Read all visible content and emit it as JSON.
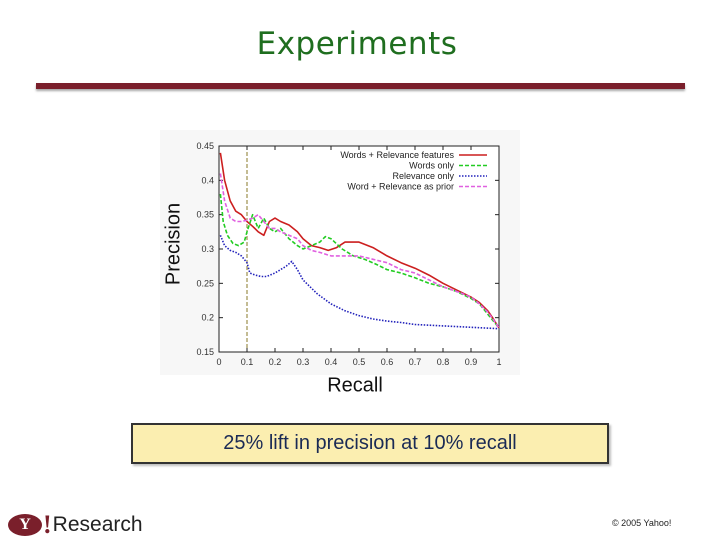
{
  "slide": {
    "title": "Experiments",
    "caption": "25% lift in precision at 10% recall",
    "logo": {
      "mark": "Y",
      "bang": "!",
      "word": "Research"
    },
    "copyright": "© 2005 Yahoo!",
    "colors": {
      "title": "#1f6e1f",
      "rule": "#7a1f2b",
      "callout_bg": "#fbeeb0"
    }
  },
  "chart_data": {
    "type": "line",
    "xlabel": "Recall",
    "ylabel": "Precision",
    "xlim": [
      0,
      1
    ],
    "ylim": [
      0.15,
      0.45
    ],
    "xticks": [
      0,
      0.1,
      0.2,
      0.3,
      0.4,
      0.5,
      0.6,
      0.7,
      0.8,
      0.9,
      1
    ],
    "xtick_labels": [
      "0",
      "0.1",
      "0.2",
      "0.3",
      "0.4",
      "0.5",
      "0.6",
      "0.7",
      "0.8",
      "0.9",
      "1"
    ],
    "yticks": [
      0.15,
      0.2,
      0.25,
      0.3,
      0.35,
      0.4,
      0.45
    ],
    "ytick_labels": [
      "0.15",
      "0.2",
      "0.25",
      "0.3",
      "0.35",
      "0.4",
      "0.45"
    ],
    "grid": false,
    "legend_position": "top-right",
    "vline_x": 0.1,
    "series": [
      {
        "name": "Words + Relevance features",
        "color": "#cc1f1f",
        "style": "solid",
        "x": [
          0.005,
          0.02,
          0.04,
          0.06,
          0.08,
          0.1,
          0.12,
          0.14,
          0.16,
          0.18,
          0.2,
          0.22,
          0.25,
          0.28,
          0.3,
          0.33,
          0.36,
          0.39,
          0.42,
          0.45,
          0.5,
          0.55,
          0.6,
          0.65,
          0.7,
          0.75,
          0.8,
          0.85,
          0.9,
          0.93,
          0.96,
          0.98,
          1.0
        ],
        "y": [
          0.44,
          0.4,
          0.37,
          0.355,
          0.35,
          0.34,
          0.333,
          0.325,
          0.32,
          0.34,
          0.345,
          0.34,
          0.335,
          0.325,
          0.315,
          0.305,
          0.302,
          0.298,
          0.302,
          0.31,
          0.31,
          0.302,
          0.29,
          0.28,
          0.272,
          0.262,
          0.25,
          0.24,
          0.23,
          0.222,
          0.21,
          0.198,
          0.185
        ]
      },
      {
        "name": "Words only",
        "color": "#22cc22",
        "style": "dashed",
        "x": [
          0.005,
          0.015,
          0.03,
          0.05,
          0.07,
          0.09,
          0.1,
          0.12,
          0.14,
          0.16,
          0.18,
          0.2,
          0.22,
          0.25,
          0.28,
          0.3,
          0.33,
          0.36,
          0.38,
          0.4,
          0.44,
          0.48,
          0.52,
          0.56,
          0.6,
          0.65,
          0.7,
          0.75,
          0.8,
          0.85,
          0.9,
          0.93,
          0.96,
          0.98,
          1.0
        ],
        "y": [
          0.38,
          0.34,
          0.32,
          0.308,
          0.305,
          0.31,
          0.325,
          0.35,
          0.33,
          0.345,
          0.33,
          0.325,
          0.33,
          0.315,
          0.305,
          0.3,
          0.305,
          0.31,
          0.318,
          0.315,
          0.3,
          0.29,
          0.285,
          0.278,
          0.27,
          0.265,
          0.258,
          0.25,
          0.245,
          0.238,
          0.228,
          0.22,
          0.205,
          0.195,
          0.185
        ]
      },
      {
        "name": "Relevance only",
        "color": "#2222bb",
        "style": "dotted",
        "x": [
          0.005,
          0.02,
          0.04,
          0.06,
          0.08,
          0.1,
          0.11,
          0.13,
          0.15,
          0.17,
          0.2,
          0.22,
          0.24,
          0.26,
          0.28,
          0.3,
          0.35,
          0.4,
          0.45,
          0.5,
          0.55,
          0.6,
          0.65,
          0.7,
          0.75,
          0.8,
          0.85,
          0.9,
          0.95,
          1.0
        ],
        "y": [
          0.32,
          0.305,
          0.298,
          0.295,
          0.29,
          0.28,
          0.265,
          0.262,
          0.26,
          0.26,
          0.265,
          0.27,
          0.275,
          0.282,
          0.27,
          0.255,
          0.235,
          0.22,
          0.21,
          0.203,
          0.198,
          0.195,
          0.193,
          0.19,
          0.189,
          0.188,
          0.187,
          0.186,
          0.185,
          0.184
        ]
      },
      {
        "name": "Word + Relevance as prior",
        "color": "#e060e0",
        "style": "dashed",
        "x": [
          0.005,
          0.02,
          0.04,
          0.06,
          0.08,
          0.1,
          0.12,
          0.14,
          0.16,
          0.18,
          0.2,
          0.22,
          0.25,
          0.28,
          0.3,
          0.33,
          0.36,
          0.4,
          0.45,
          0.5,
          0.55,
          0.6,
          0.65,
          0.7,
          0.75,
          0.8,
          0.85,
          0.9,
          0.93,
          0.96,
          0.98,
          1.0
        ],
        "y": [
          0.41,
          0.37,
          0.345,
          0.34,
          0.34,
          0.342,
          0.345,
          0.35,
          0.34,
          0.33,
          0.33,
          0.325,
          0.32,
          0.315,
          0.305,
          0.298,
          0.295,
          0.29,
          0.29,
          0.29,
          0.285,
          0.28,
          0.27,
          0.265,
          0.255,
          0.245,
          0.238,
          0.23,
          0.22,
          0.208,
          0.197,
          0.185
        ]
      }
    ]
  }
}
